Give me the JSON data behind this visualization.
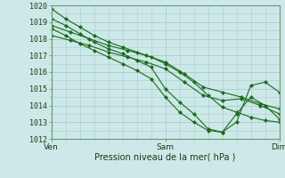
{
  "title": "",
  "xlabel": "Pression niveau de la mer( hPa )",
  "xlim": [
    0,
    48
  ],
  "ylim": [
    1012,
    1020
  ],
  "yticks": [
    1012,
    1013,
    1014,
    1015,
    1016,
    1017,
    1018,
    1019,
    1020
  ],
  "xtick_positions": [
    0,
    24,
    48
  ],
  "xtick_labels": [
    "Ven",
    "Sam",
    "Dim"
  ],
  "bg_color": "#cce8e8",
  "grid_color": "#aacccc",
  "line_color": "#1a6b1a",
  "figsize": [
    3.2,
    2.0
  ],
  "dpi": 100,
  "series": [
    {
      "x": [
        0,
        3,
        6,
        9,
        12,
        15,
        18,
        21,
        24,
        27,
        30,
        33,
        36,
        39,
        42,
        45,
        48
      ],
      "y": [
        1019.8,
        1019.2,
        1018.7,
        1018.2,
        1017.8,
        1017.5,
        1017.2,
        1016.9,
        1016.5,
        1016.0,
        1015.4,
        1014.6,
        1013.9,
        1013.6,
        1013.3,
        1013.1,
        1013.0
      ]
    },
    {
      "x": [
        0,
        4,
        8,
        12,
        16,
        20,
        24,
        28,
        32,
        36,
        40,
        44,
        48
      ],
      "y": [
        1018.8,
        1018.4,
        1018.0,
        1017.6,
        1017.3,
        1017.0,
        1016.6,
        1015.9,
        1015.1,
        1014.8,
        1014.5,
        1014.1,
        1013.8
      ]
    },
    {
      "x": [
        0,
        4,
        8,
        12,
        16,
        20,
        24,
        28,
        32,
        36,
        40,
        44,
        48
      ],
      "y": [
        1018.2,
        1017.9,
        1017.6,
        1017.2,
        1016.9,
        1016.6,
        1016.2,
        1015.4,
        1014.6,
        1014.3,
        1014.4,
        1014.0,
        1013.5
      ]
    },
    {
      "x": [
        0,
        3,
        6,
        9,
        12,
        15,
        18,
        21,
        24,
        27,
        30,
        33,
        36,
        39,
        42,
        45,
        48
      ],
      "y": [
        1019.2,
        1018.8,
        1018.3,
        1017.8,
        1017.4,
        1017.1,
        1016.7,
        1016.3,
        1015.0,
        1014.2,
        1013.5,
        1012.6,
        1012.4,
        1013.0,
        1015.2,
        1015.4,
        1014.8
      ]
    },
    {
      "x": [
        0,
        3,
        6,
        9,
        12,
        15,
        18,
        21,
        24,
        27,
        30,
        33,
        36,
        39,
        42,
        45,
        48
      ],
      "y": [
        1018.6,
        1018.2,
        1017.7,
        1017.3,
        1016.9,
        1016.5,
        1016.1,
        1015.6,
        1014.5,
        1013.6,
        1013.0,
        1012.5,
        1012.4,
        1013.5,
        1014.5,
        1014.0,
        1013.2
      ]
    }
  ]
}
